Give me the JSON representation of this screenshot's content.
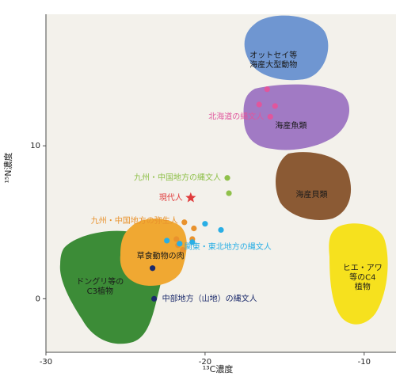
{
  "chart_data": {
    "type": "scatter",
    "title": "",
    "xlabel": "¹³C濃度",
    "ylabel": "¹⁵N濃度",
    "xlim": [
      -30,
      -8
    ],
    "ylim": [
      -3.5,
      18.6
    ],
    "xticks": [
      -30,
      -20,
      -10
    ],
    "yticks": [
      0,
      10
    ],
    "grid": false,
    "background": "#f3f1eb",
    "regions": [
      {
        "name": "オットセイ等\n海産大型動物",
        "color": "#6f96d1",
        "x": -15.7,
        "y": 15.6
      },
      {
        "name": "海産魚類",
        "color": "#a17ac4",
        "x": -14.6,
        "y": 11.3
      },
      {
        "name": "海産貝類",
        "color": "#8b5a34",
        "x": -13.3,
        "y": 6.8
      },
      {
        "name": "ヒエ・アワ\n等のC4\n植物",
        "color": "#f6e11e",
        "x": -10.1,
        "y": 1.4
      },
      {
        "name": "ドングリ等の\nC3植物",
        "color": "#3c8c37",
        "x": -26.6,
        "y": 0.8
      },
      {
        "name": "草食動物の肉",
        "color": "#f0a832",
        "x": -22.8,
        "y": 2.8
      }
    ],
    "series": [
      {
        "name": "北海道の縄文人",
        "color": "#e0569d",
        "points": [
          [
            -16.1,
            13.7
          ],
          [
            -16.6,
            12.7
          ],
          [
            -15.6,
            12.6
          ],
          [
            -15.9,
            11.9
          ]
        ]
      },
      {
        "name": "九州・中国地方の縄文人",
        "color": "#8fc04a",
        "points": [
          [
            -18.6,
            7.9
          ],
          [
            -18.5,
            6.9
          ]
        ]
      },
      {
        "name": "現代人",
        "color": "#e03c3c",
        "marker": "star",
        "points": [
          [
            -20.9,
            6.6
          ]
        ]
      },
      {
        "name": "九州・中国地方の弥生人",
        "color": "#e9922d",
        "points": [
          [
            -21.3,
            5.0
          ],
          [
            -20.7,
            4.6
          ],
          [
            -20.8,
            3.9
          ],
          [
            -21.7,
            3.5
          ],
          [
            -21.8,
            3.9
          ],
          [
            -21.4,
            3.2
          ]
        ]
      },
      {
        "name": "関東・東北地方の縄文人",
        "color": "#29aee5",
        "points": [
          [
            -22.4,
            3.8
          ],
          [
            -21.6,
            3.6
          ],
          [
            -20.8,
            3.7
          ],
          [
            -20.0,
            4.9
          ],
          [
            -19.0,
            4.5
          ]
        ]
      },
      {
        "name": "中部地方（山地）の縄文人",
        "color": "#1b2a6b",
        "points": [
          [
            -23.3,
            2.0
          ],
          [
            -23.2,
            0.0
          ]
        ]
      }
    ]
  }
}
